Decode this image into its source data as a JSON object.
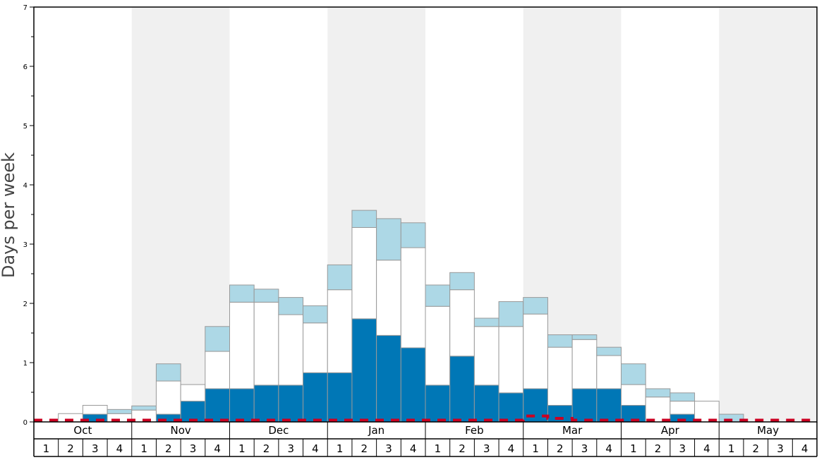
{
  "chart_data": {
    "type": "bar",
    "ylabel": "Days per week",
    "ylim": [
      0,
      7
    ],
    "y_ticks": [
      0,
      1,
      2,
      3,
      4,
      5,
      6,
      7
    ],
    "stacked": true,
    "months": [
      {
        "label": "Oct",
        "shaded": false
      },
      {
        "label": "Nov",
        "shaded": true
      },
      {
        "label": "Dec",
        "shaded": false
      },
      {
        "label": "Jan",
        "shaded": true
      },
      {
        "label": "Feb",
        "shaded": false
      },
      {
        "label": "Mar",
        "shaded": true
      },
      {
        "label": "Apr",
        "shaded": false
      },
      {
        "label": "May",
        "shaded": true
      }
    ],
    "weeks_per_month": [
      "1",
      "2",
      "3",
      "4"
    ],
    "series": [
      {
        "color": "#0077b6",
        "values": [
          0,
          0,
          0.13,
          0,
          0,
          0.13,
          0.35,
          0.56,
          0.56,
          0.62,
          0.62,
          0.83,
          0.83,
          1.74,
          1.46,
          1.25,
          0.62,
          1.11,
          0.62,
          0.49,
          0.56,
          0.28,
          0.56,
          0.56,
          0.28,
          0,
          0.13,
          0,
          0,
          0,
          0,
          0
        ]
      },
      {
        "color": "#ffffff",
        "values": [
          0,
          0.14,
          0.15,
          0.14,
          0.2,
          0.56,
          0.28,
          0.63,
          1.46,
          1.4,
          1.19,
          0.84,
          1.4,
          1.54,
          1.27,
          1.69,
          1.33,
          1.12,
          0.99,
          1.12,
          1.26,
          0.98,
          0.83,
          0.56,
          0.35,
          0.42,
          0.22,
          0.35,
          0,
          0,
          0,
          0
        ]
      },
      {
        "color": "#add8e6",
        "values": [
          0,
          0,
          0,
          0.07,
          0.07,
          0.29,
          0,
          0.42,
          0.29,
          0.22,
          0.29,
          0.29,
          0.42,
          0.29,
          0.7,
          0.42,
          0.36,
          0.29,
          0.14,
          0.42,
          0.28,
          0.21,
          0.08,
          0.14,
          0.35,
          0.14,
          0.14,
          0,
          0.13,
          0,
          0,
          0
        ]
      }
    ],
    "reference_line": {
      "color": "#cc0022",
      "style": "dashed",
      "values": [
        0.03,
        0.03,
        0.03,
        0.03,
        0.03,
        0.03,
        0.03,
        0.03,
        0.03,
        0.03,
        0.03,
        0.03,
        0.03,
        0.03,
        0.03,
        0.03,
        0.03,
        0.03,
        0.03,
        0.03,
        0.1,
        0.06,
        0.03,
        0.03,
        0.03,
        0.03,
        0.03,
        0.03,
        0.03,
        0.03,
        0.03,
        0.03
      ]
    },
    "grid": false,
    "legend": "none"
  }
}
